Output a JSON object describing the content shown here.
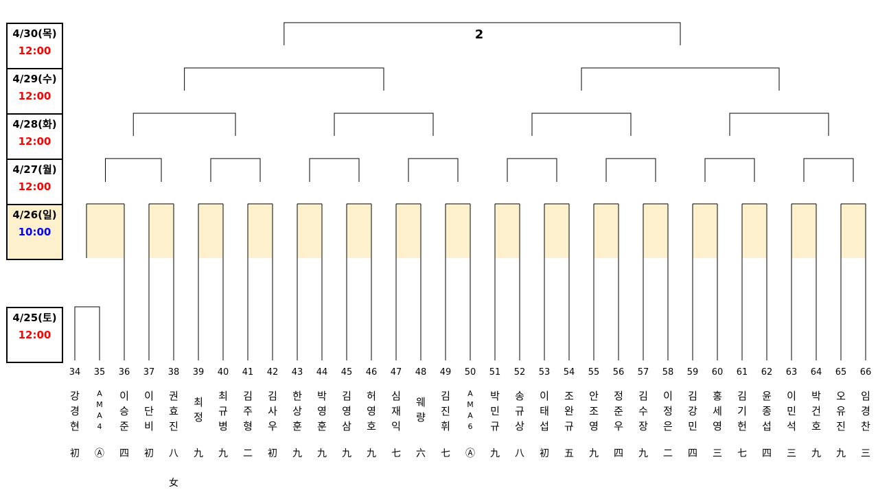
{
  "final_label": "2",
  "dates": [
    {
      "date": "4/30(목)",
      "time": "12:00",
      "time_color": "#ff0000"
    },
    {
      "date": "4/29(수)",
      "time": "12:00",
      "time_color": "#ff0000"
    },
    {
      "date": "4/28(화)",
      "time": "12:00",
      "time_color": "#ff0000"
    },
    {
      "date": "4/27(월)",
      "time": "12:00",
      "time_color": "#ff0000"
    },
    {
      "date": "4/26(일)",
      "time": "10:00",
      "time_color": "#0000ff"
    },
    {
      "date": "4/25(토)",
      "time": "12:00",
      "time_color": "#ff0000"
    }
  ],
  "highlight_color": "#fdf0cc",
  "players": [
    {
      "num": "34",
      "name": "강경현",
      "rank": "初"
    },
    {
      "num": "35",
      "name": "AMA4",
      "rank": "Ⓐ"
    },
    {
      "num": "36",
      "name": "이승준",
      "rank": "四"
    },
    {
      "num": "37",
      "name": "이단비",
      "rank": "初"
    },
    {
      "num": "38",
      "name": "권효진",
      "rank": "八",
      "sub": "女"
    },
    {
      "num": "39",
      "name": "최정",
      "rank": "九"
    },
    {
      "num": "40",
      "name": "최규병",
      "rank": "九"
    },
    {
      "num": "41",
      "name": "김주형",
      "rank": "二"
    },
    {
      "num": "42",
      "name": "김사우",
      "rank": "初"
    },
    {
      "num": "43",
      "name": "한상훈",
      "rank": "九"
    },
    {
      "num": "44",
      "name": "박영훈",
      "rank": "九"
    },
    {
      "num": "45",
      "name": "김영삼",
      "rank": "九"
    },
    {
      "num": "46",
      "name": "허영호",
      "rank": "九"
    },
    {
      "num": "47",
      "name": "심재익",
      "rank": "七"
    },
    {
      "num": "48",
      "name": "웨량",
      "rank": "六"
    },
    {
      "num": "49",
      "name": "김진휘",
      "rank": "七"
    },
    {
      "num": "50",
      "name": "AMA6",
      "rank": "Ⓐ"
    },
    {
      "num": "51",
      "name": "박민규",
      "rank": "九"
    },
    {
      "num": "52",
      "name": "송규상",
      "rank": "八"
    },
    {
      "num": "53",
      "name": "이태섭",
      "rank": "初"
    },
    {
      "num": "54",
      "name": "조완규",
      "rank": "五"
    },
    {
      "num": "55",
      "name": "안조영",
      "rank": "九"
    },
    {
      "num": "56",
      "name": "정준우",
      "rank": "四"
    },
    {
      "num": "57",
      "name": "김수장",
      "rank": "九"
    },
    {
      "num": "58",
      "name": "이정은",
      "rank": "二"
    },
    {
      "num": "59",
      "name": "김강민",
      "rank": "四"
    },
    {
      "num": "60",
      "name": "홍세영",
      "rank": "三"
    },
    {
      "num": "61",
      "name": "김기헌",
      "rank": "七"
    },
    {
      "num": "62",
      "name": "윤종섭",
      "rank": "四"
    },
    {
      "num": "63",
      "name": "이민석",
      "rank": "三"
    },
    {
      "num": "64",
      "name": "박건호",
      "rank": "九"
    },
    {
      "num": "65",
      "name": "오유진",
      "rank": "九"
    },
    {
      "num": "66",
      "name": "임경찬",
      "rank": "三"
    }
  ]
}
